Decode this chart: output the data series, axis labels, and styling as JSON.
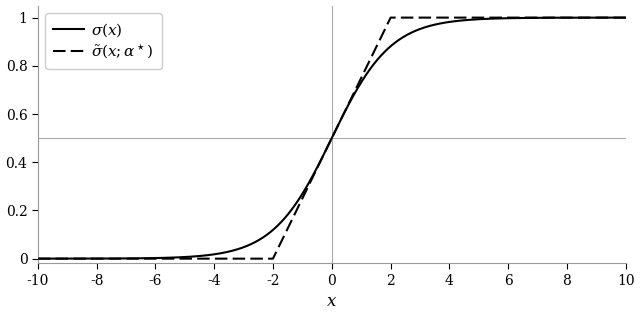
{
  "xlim": [
    -10,
    10
  ],
  "ylim": [
    -0.02,
    1.05
  ],
  "xticks": [
    -10,
    -8,
    -6,
    -4,
    -2,
    0,
    2,
    4,
    6,
    8,
    10
  ],
  "yticks": [
    0.0,
    0.2,
    0.4,
    0.6,
    0.8,
    1.0
  ],
  "xlabel": "$x$",
  "hline_y": 0.5,
  "vline_x": 0.0,
  "line1_label": "$\\sigma(x)$",
  "line2_label": "$\\tilde{\\sigma}(x;\\alpha^\\star)$",
  "line_color": "#000000",
  "hline_color": "#aaaaaa",
  "vline_color": "#aaaaaa",
  "figsize": [
    6.4,
    3.16
  ],
  "dpi": 100,
  "approx_alpha": 0.25,
  "approx_shift": 0.5
}
